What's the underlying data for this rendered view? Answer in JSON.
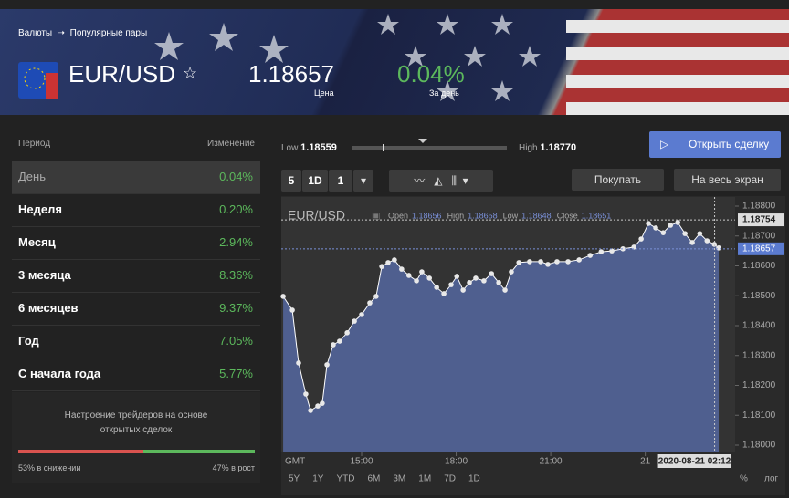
{
  "breadcrumb": [
    "Валюты",
    "Популярные пары"
  ],
  "instrument": {
    "name": "EUR/USD",
    "price": "1.18657",
    "price_label": "Цена",
    "change": "0.04%",
    "change_label": "За день"
  },
  "performance": {
    "header": [
      "Период",
      "Изменение"
    ],
    "rows": [
      [
        "День",
        "0.04%"
      ],
      [
        "Неделя",
        "0.20%"
      ],
      [
        "Месяц",
        "2.94%"
      ],
      [
        "3 месяца",
        "8.36%"
      ],
      [
        "6 месяцев",
        "9.37%"
      ],
      [
        "Год",
        "7.05%"
      ],
      [
        "С начала года",
        "5.77%"
      ]
    ]
  },
  "sentiment": {
    "title": "Настроение трейдеров на основе открытых сделок",
    "sell_pct": 53,
    "buy_pct": 47,
    "sell_label": "53% в снижении",
    "buy_label": "47% в рост"
  },
  "range": {
    "low_label": "Low",
    "low": "1.18559",
    "high_label": "High",
    "high": "1.18770"
  },
  "buttons": {
    "trade": "Открыть сделку",
    "buy": "Покупать",
    "fullscreen": "На весь экран"
  },
  "toolbar": [
    "5",
    "1D",
    "1"
  ],
  "chart_data": {
    "type": "line",
    "legend": "EUR/USD",
    "color": "#ffffff",
    "fill": "#4f5f8f",
    "ohlc": [
      [
        "Open",
        "1.18656"
      ],
      [
        "High",
        "1.18658"
      ],
      [
        "Low",
        "1.18648"
      ],
      [
        "Close",
        "1.18651"
      ]
    ],
    "x": [
      12.51,
      12.8,
      13.0,
      13.23,
      13.38,
      13.61,
      13.75,
      13.9,
      14.1,
      14.3,
      14.54,
      14.77,
      15.0,
      15.26,
      15.46,
      15.64,
      15.84,
      16.04,
      16.27,
      16.5,
      16.74,
      16.91,
      17.15,
      17.38,
      17.61,
      17.84,
      18.02,
      18.22,
      18.42,
      18.62,
      18.88,
      19.12,
      19.35,
      19.55,
      19.75,
      19.99,
      20.33,
      20.68,
      20.91,
      21.2,
      21.55,
      21.9,
      22.25,
      22.6,
      22.94,
      23.29,
      23.64,
      23.87,
      24.1,
      24.33,
      24.57,
      24.8,
      25.03,
      25.26,
      25.49,
      25.73,
      25.96,
      26.19,
      26.33
    ],
    "values": [
      1.18498,
      1.18452,
      1.18275,
      1.18171,
      1.18116,
      1.18131,
      1.1814,
      1.18269,
      1.18336,
      1.18348,
      1.18376,
      1.18415,
      1.18437,
      1.18476,
      1.18498,
      1.18598,
      1.18611,
      1.1862,
      1.18589,
      1.18568,
      1.1855,
      1.1858,
      1.18559,
      1.18528,
      1.18507,
      1.18537,
      1.18565,
      1.18519,
      1.18544,
      1.18559,
      1.1855,
      1.18574,
      1.18544,
      1.18519,
      1.1858,
      1.18611,
      1.18614,
      1.18614,
      1.18605,
      1.18614,
      1.18614,
      1.1862,
      1.18635,
      1.18647,
      1.1865,
      1.18657,
      1.18663,
      1.1869,
      1.18742,
      1.18727,
      1.18711,
      1.18736,
      1.18745,
      1.18708,
      1.18678,
      1.18708,
      1.18684,
      1.18672,
      1.1866
    ],
    "xlim": [
      12.45,
      26.85
    ],
    "ylim": [
      1.18,
      1.188
    ],
    "yticks": [
      {
        "value": 1.18,
        "label": "1.18000"
      },
      {
        "value": 1.181,
        "label": "1.18100"
      },
      {
        "value": 1.182,
        "label": "1.18200"
      },
      {
        "value": 1.183,
        "label": "1.18300"
      },
      {
        "value": 1.184,
        "label": "1.18400"
      },
      {
        "value": 1.185,
        "label": "1.18500"
      },
      {
        "value": 1.186,
        "label": "1.18600"
      },
      {
        "value": 1.187,
        "label": "1.18700"
      },
      {
        "value": 1.188,
        "label": "1.18800"
      }
    ],
    "xticks": [
      {
        "value": 15,
        "label": "15:00"
      },
      {
        "value": 18,
        "label": "18:00"
      },
      {
        "value": 21,
        "label": "21:00"
      },
      {
        "value": 24,
        "label": "21"
      }
    ],
    "high_marker": 1.18754,
    "last_marker": 1.18657,
    "cursor": {
      "value": 26.2,
      "label": "2020-08-21 02:12"
    },
    "timezone": "GMT",
    "periods": [
      "5Y",
      "1Y",
      "YTD",
      "6M",
      "3M",
      "1M",
      "7D",
      "1D"
    ],
    "scale_options": [
      "%",
      "лог"
    ]
  }
}
